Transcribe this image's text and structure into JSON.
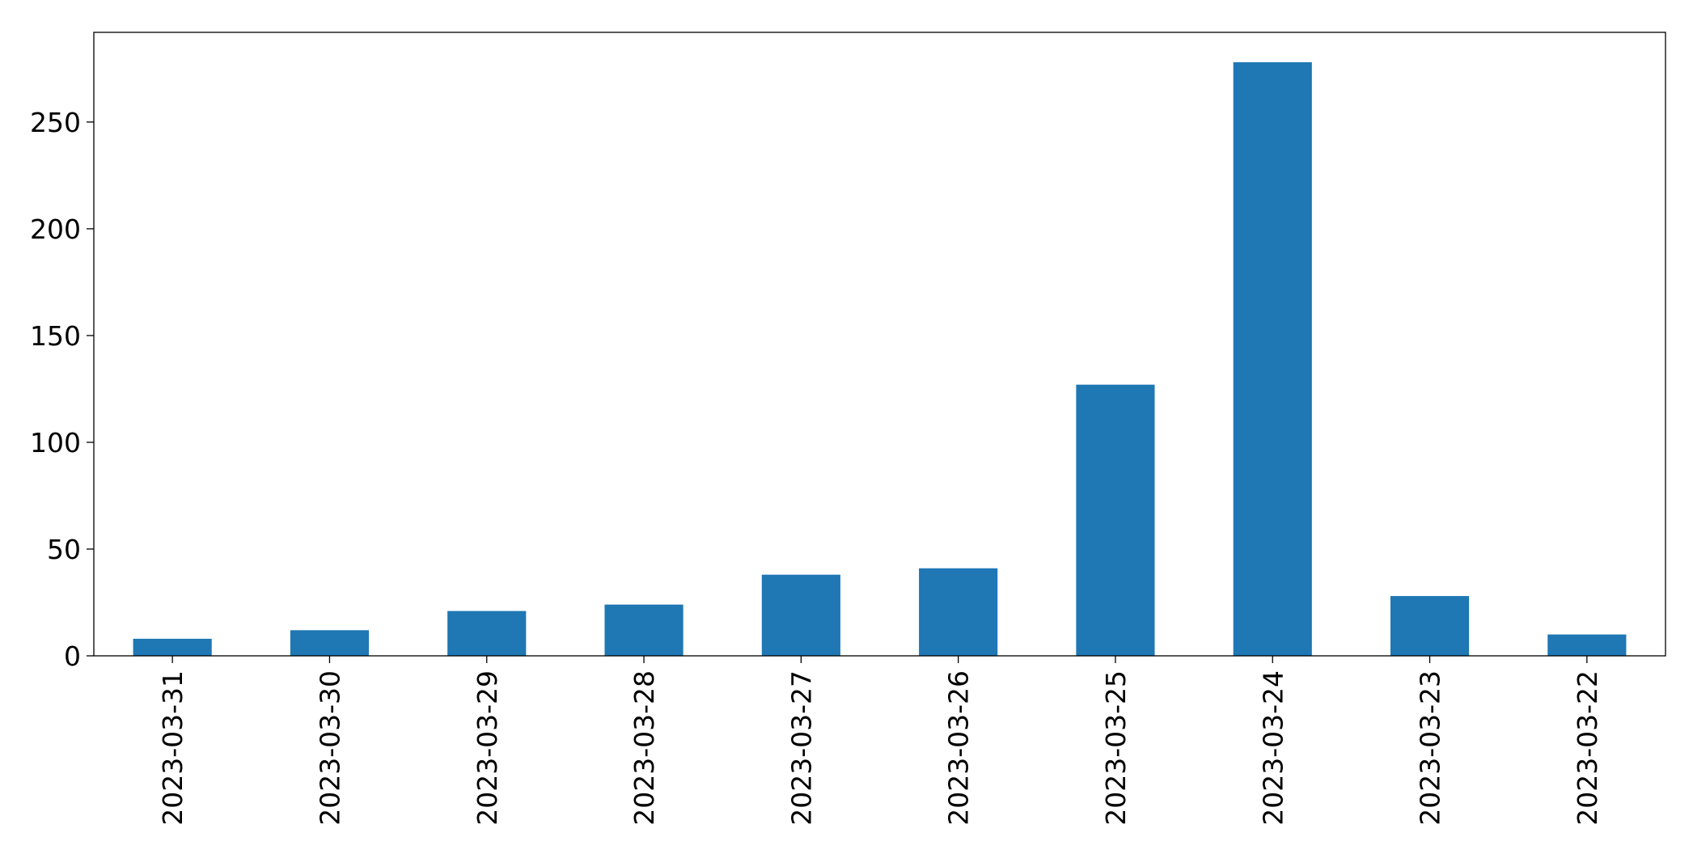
{
  "chart_data": {
    "type": "bar",
    "categories": [
      "2023-03-31",
      "2023-03-30",
      "2023-03-29",
      "2023-03-28",
      "2023-03-27",
      "2023-03-26",
      "2023-03-25",
      "2023-03-24",
      "2023-03-23",
      "2023-03-22"
    ],
    "values": [
      8,
      12,
      21,
      24,
      38,
      41,
      127,
      278,
      28,
      10
    ],
    "title": "",
    "xlabel": "",
    "ylabel": "",
    "ylim": [
      0,
      292
    ],
    "yticks": [
      0,
      50,
      100,
      150,
      200,
      250
    ],
    "ytick_labels": [
      "0",
      "50",
      "100",
      "150",
      "200",
      "250"
    ],
    "grid": false,
    "legend": "none",
    "bar_color": "#1f77b4"
  }
}
